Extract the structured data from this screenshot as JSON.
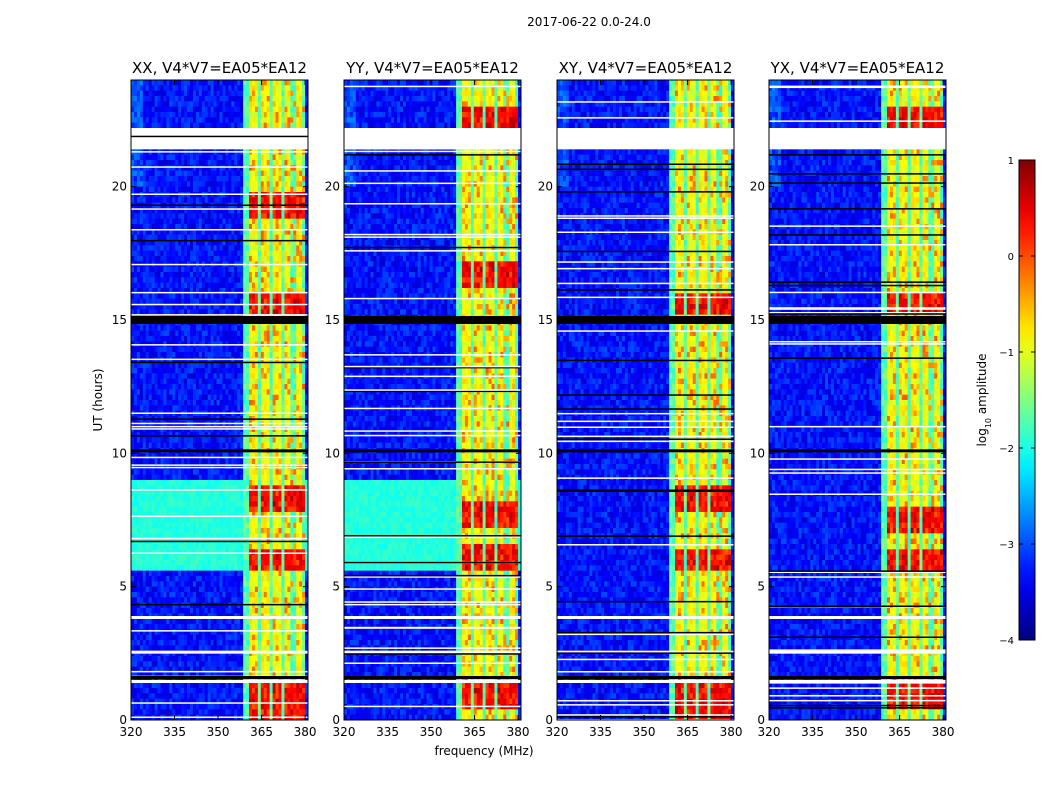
{
  "figure": {
    "suptitle": "2017-06-22 0.0-24.0"
  },
  "chart_data": {
    "type": "heatmap",
    "description_note": "",
    "xlabel": "frequency (MHz)",
    "ylabel": "UT (hours)",
    "xlim": [
      320,
      381
    ],
    "ylim": [
      0,
      24
    ],
    "xticks": [
      320,
      335,
      350,
      365,
      380
    ],
    "yticks": [
      0,
      5,
      10,
      15,
      20
    ],
    "panels": [
      {
        "title": "XX, V4*V7=EA05*EA12",
        "polarization": "XX",
        "rfi_band_mhz": [
          358.5,
          379.5
        ],
        "low_freq_elevated_hours": [
          5.7,
          9.0
        ],
        "peak_hours": [
          0.3,
          1.0,
          6.0,
          8.3,
          15.6,
          19.3
        ]
      },
      {
        "title": "YY, V4*V7=EA05*EA12",
        "polarization": "YY",
        "rfi_band_mhz": [
          358.5,
          379.5
        ],
        "low_freq_elevated_hours": [
          5.7,
          9.0
        ],
        "peak_hours": [
          0.9,
          6.1,
          7.7,
          16.7,
          22.6
        ]
      },
      {
        "title": "XY, V4*V7=EA05*EA12",
        "polarization": "XY",
        "rfi_band_mhz": [
          358.5,
          379.5
        ],
        "low_freq_elevated_hours": [],
        "peak_hours": [
          0.4,
          1.0,
          6.0,
          8.3,
          15.6
        ]
      },
      {
        "title": "YX, V4*V7=EA05*EA12",
        "polarization": "YX",
        "rfi_band_mhz": [
          358.5,
          379.5
        ],
        "low_freq_elevated_hours": [],
        "peak_hours": [
          0.9,
          6.0,
          7.5,
          15.6,
          22.6
        ]
      }
    ],
    "data_gaps_hours": [
      [
        21.4,
        22.2
      ],
      [
        15.1,
        15.1
      ],
      [
        3.9,
        3.9
      ],
      [
        1.5,
        1.5
      ],
      [
        2.6,
        2.6
      ]
    ],
    "colorbar": {
      "label": "log10 amplitude",
      "label_base": "log",
      "label_sub": "10",
      "label_rest": " amplitude",
      "range": [
        -4,
        1
      ],
      "ticks": [
        1,
        0,
        -1,
        -2,
        -3,
        -4
      ],
      "tick_labels": [
        "1",
        "0",
        "−1",
        "−2",
        "−3",
        "−4"
      ],
      "colormap": "jet"
    },
    "grid": false,
    "legend": "none"
  }
}
